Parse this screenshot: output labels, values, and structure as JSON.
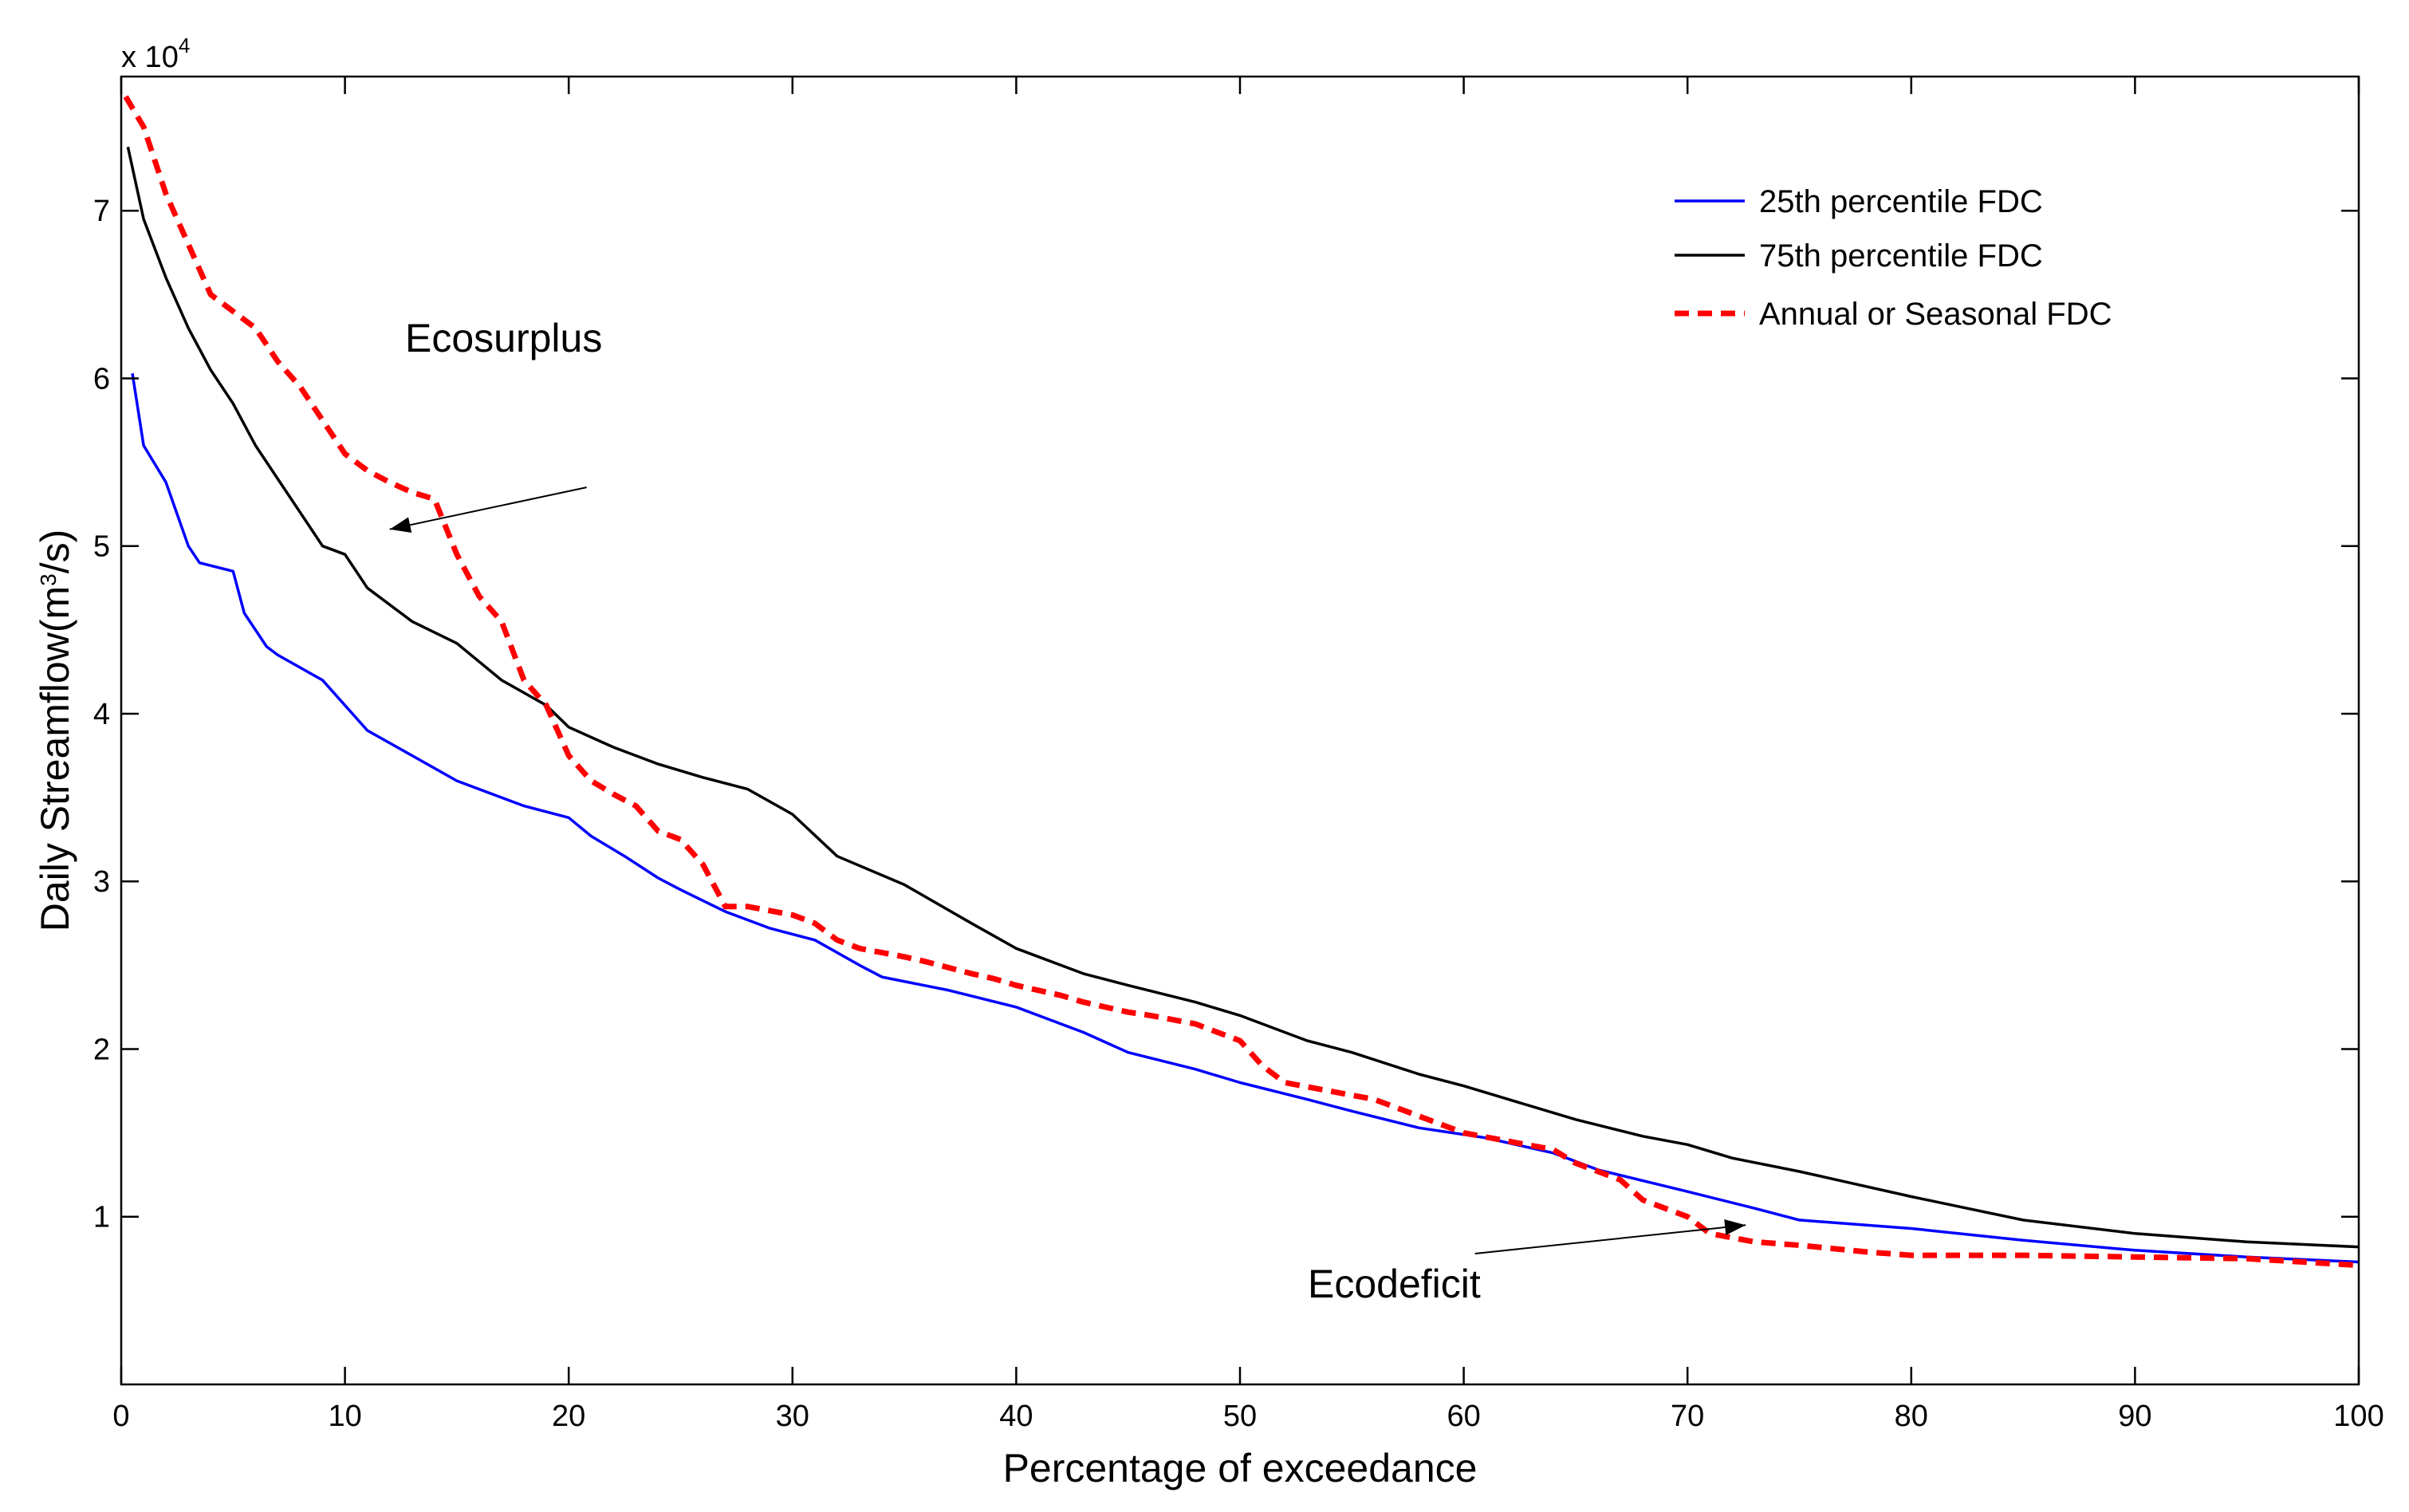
{
  "chart_data": {
    "type": "line",
    "title": "",
    "xlabel": "Percentage of exceedance",
    "ylabel_main": "Daily Streamflow(m",
    "ylabel_sup": "3",
    "ylabel_tail": "/s)",
    "y_multiplier_base": "x 10",
    "y_multiplier_exp": "4",
    "xlim": [
      0,
      100
    ],
    "ylim": [
      0,
      7.8
    ],
    "xticks": [
      0,
      10,
      20,
      30,
      40,
      50,
      60,
      70,
      80,
      90,
      100
    ],
    "xtick_labels": [
      "0",
      "10",
      "20",
      "30",
      "40",
      "50",
      "60",
      "70",
      "80",
      "90",
      "100"
    ],
    "yticks": [
      1,
      2,
      3,
      4,
      5,
      6,
      7
    ],
    "ytick_labels": [
      "1",
      "2",
      "3",
      "4",
      "5",
      "6",
      "7"
    ],
    "grid": false,
    "legend_position": "top-right",
    "series": [
      {
        "name": "25th percentile FDC",
        "color": "#0000ff",
        "style": "solid",
        "x": [
          0.5,
          1,
          2,
          3,
          3.5,
          5,
          5.5,
          6.5,
          7,
          9,
          11,
          13,
          15,
          18,
          20,
          21,
          22.5,
          24,
          25,
          27,
          29,
          31,
          33,
          34,
          37,
          40,
          43,
          45,
          48,
          50,
          53,
          55,
          58,
          61,
          64,
          66,
          70,
          73,
          75,
          80,
          85,
          90,
          95,
          100
        ],
        "y": [
          6.03,
          5.6,
          5.38,
          5.0,
          4.9,
          4.85,
          4.6,
          4.4,
          4.35,
          4.2,
          3.9,
          3.75,
          3.6,
          3.45,
          3.38,
          3.27,
          3.15,
          3.02,
          2.95,
          2.82,
          2.72,
          2.65,
          2.5,
          2.43,
          2.35,
          2.25,
          2.1,
          1.98,
          1.88,
          1.8,
          1.7,
          1.63,
          1.53,
          1.47,
          1.38,
          1.28,
          1.15,
          1.05,
          0.98,
          0.93,
          0.86,
          0.8,
          0.76,
          0.73
        ]
      },
      {
        "name": "75th percentile FDC",
        "color": "#000000",
        "style": "solid",
        "x": [
          0.3,
          1,
          2,
          3,
          4,
          5,
          6,
          7,
          8,
          9,
          10,
          11,
          13,
          15,
          17,
          19,
          20,
          22,
          24,
          26,
          28,
          30,
          32,
          35,
          38,
          40,
          43,
          45,
          48,
          50,
          53,
          55,
          58,
          60,
          62,
          65,
          68,
          70,
          72,
          75,
          80,
          85,
          90,
          95,
          100
        ],
        "y": [
          7.38,
          6.95,
          6.6,
          6.3,
          6.05,
          5.85,
          5.6,
          5.4,
          5.2,
          5.0,
          4.95,
          4.75,
          4.55,
          4.42,
          4.2,
          4.05,
          3.92,
          3.8,
          3.7,
          3.62,
          3.55,
          3.4,
          3.15,
          2.98,
          2.75,
          2.6,
          2.45,
          2.38,
          2.28,
          2.2,
          2.05,
          1.98,
          1.85,
          1.78,
          1.7,
          1.58,
          1.48,
          1.43,
          1.35,
          1.27,
          1.12,
          0.98,
          0.9,
          0.85,
          0.82
        ]
      },
      {
        "name": "Annual or Seasonal FDC",
        "color": "#ff0000",
        "style": "dashed",
        "x": [
          0.2,
          1,
          2,
          3,
          4,
          5,
          6,
          7,
          8,
          9,
          10,
          11,
          12,
          13,
          14,
          15,
          16,
          17,
          18,
          19,
          20,
          21,
          22,
          23,
          24,
          25,
          26,
          27,
          28,
          30,
          31,
          32,
          33,
          35,
          36,
          38,
          39,
          40,
          42,
          43,
          45,
          46,
          48,
          49,
          50,
          51,
          52,
          54,
          56,
          58,
          60,
          62,
          64,
          65,
          67,
          68,
          70,
          71,
          73,
          75,
          78,
          80,
          85,
          90,
          95,
          100
        ],
        "y": [
          7.68,
          7.5,
          7.1,
          6.8,
          6.5,
          6.4,
          6.3,
          6.1,
          5.95,
          5.75,
          5.55,
          5.45,
          5.38,
          5.32,
          5.28,
          4.95,
          4.7,
          4.55,
          4.2,
          4.05,
          3.75,
          3.6,
          3.52,
          3.45,
          3.3,
          3.25,
          3.1,
          2.85,
          2.85,
          2.8,
          2.75,
          2.65,
          2.6,
          2.55,
          2.52,
          2.45,
          2.42,
          2.38,
          2.32,
          2.28,
          2.22,
          2.2,
          2.15,
          2.1,
          2.05,
          1.9,
          1.8,
          1.75,
          1.7,
          1.6,
          1.5,
          1.45,
          1.4,
          1.32,
          1.22,
          1.1,
          1.0,
          0.9,
          0.85,
          0.83,
          0.79,
          0.77,
          0.77,
          0.76,
          0.75,
          0.71
        ]
      }
    ],
    "annotations": [
      {
        "text": "Ecosurplus",
        "text_x": 20.8,
        "text_y": 5.35,
        "arrow_to_x": 12,
        "arrow_to_y": 5.1
      },
      {
        "text": "Ecodeficit",
        "text_x": 60.5,
        "text_y": 0.78,
        "arrow_to_x": 72.6,
        "arrow_to_y": 0.95
      }
    ]
  }
}
